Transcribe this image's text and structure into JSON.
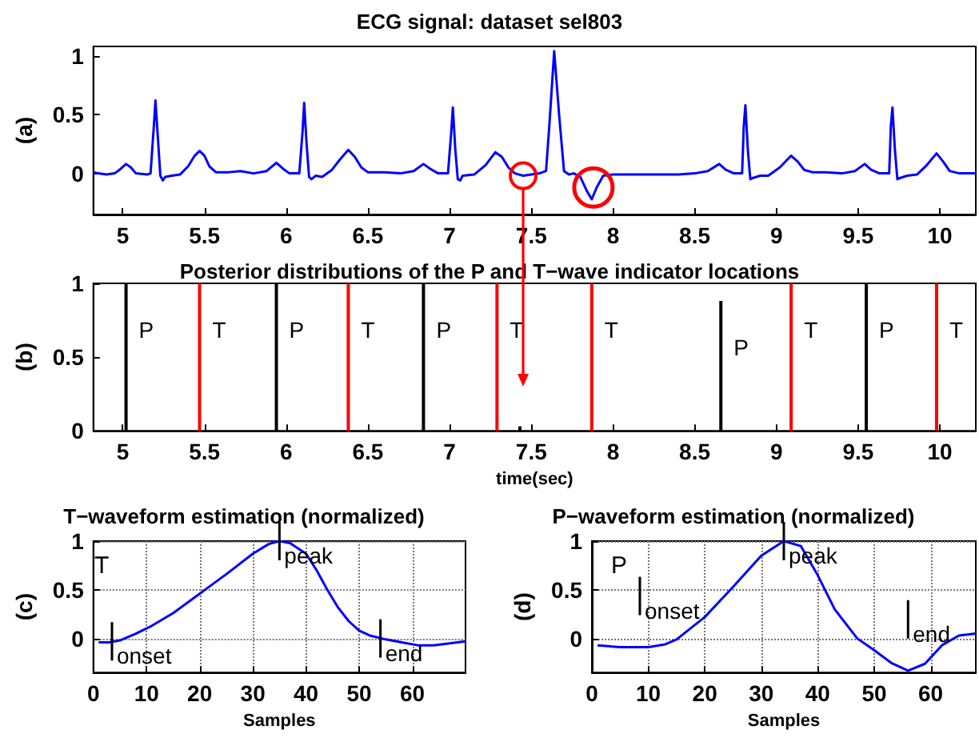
{
  "chart_data": [
    {
      "type": "line",
      "title": "ECG signal: dataset sel803",
      "ylabel": "(a)",
      "color": "#0000ff",
      "marker": "none",
      "line_style": "solid",
      "xlim": [
        4.82,
        10.22
      ],
      "xticks": [
        5,
        5.5,
        6,
        6.5,
        7,
        7.5,
        8,
        8.5,
        9,
        9.5,
        10
      ],
      "ylim": [
        -0.35,
        1.08
      ],
      "yticks": [
        0,
        0.5,
        1
      ],
      "x": [
        4.82,
        4.85,
        4.9,
        4.95,
        4.98,
        5.02,
        5.05,
        5.08,
        5.15,
        5.17,
        5.19,
        5.2,
        5.215,
        5.23,
        5.245,
        5.26,
        5.3,
        5.35,
        5.4,
        5.44,
        5.47,
        5.5,
        5.53,
        5.57,
        5.65,
        5.72,
        5.8,
        5.88,
        5.94,
        5.98,
        6.02,
        6.08,
        6.1,
        6.11,
        6.125,
        6.14,
        6.155,
        6.18,
        6.22,
        6.28,
        6.33,
        6.38,
        6.42,
        6.46,
        6.5,
        6.6,
        6.7,
        6.78,
        6.84,
        6.88,
        6.93,
        6.99,
        7.01,
        7.02,
        7.035,
        7.05,
        7.065,
        7.08,
        7.15,
        7.22,
        7.28,
        7.32,
        7.36,
        7.4,
        7.45,
        7.5,
        7.55,
        7.59,
        7.61,
        7.64,
        7.67,
        7.7,
        7.73,
        7.76,
        7.8,
        7.84,
        7.87,
        7.9,
        7.94,
        8.0,
        8.1,
        8.2,
        8.3,
        8.4,
        8.5,
        8.58,
        8.65,
        8.69,
        8.74,
        8.79,
        8.8,
        8.81,
        8.825,
        8.84,
        8.855,
        8.9,
        8.95,
        9.02,
        9.09,
        9.13,
        9.17,
        9.22,
        9.3,
        9.4,
        9.48,
        9.54,
        9.58,
        9.63,
        9.69,
        9.7,
        9.71,
        9.725,
        9.74,
        9.755,
        9.8,
        9.86,
        9.92,
        9.98,
        10.02,
        10.06,
        10.12,
        10.22
      ],
      "values": [
        0.01,
        0.0,
        -0.01,
        0.0,
        0.03,
        0.08,
        0.05,
        0.0,
        -0.01,
        0.0,
        0.4,
        0.62,
        0.3,
        -0.02,
        -0.06,
        -0.03,
        -0.02,
        -0.01,
        0.06,
        0.15,
        0.19,
        0.15,
        0.06,
        0.01,
        0.01,
        0.02,
        0.0,
        0.02,
        0.09,
        0.04,
        0.0,
        0.0,
        0.35,
        0.6,
        0.25,
        -0.03,
        -0.05,
        -0.02,
        -0.03,
        0.03,
        0.12,
        0.2,
        0.14,
        0.05,
        0.01,
        0.01,
        0.0,
        0.02,
        0.08,
        0.04,
        0.0,
        0.0,
        0.35,
        0.56,
        0.2,
        -0.05,
        -0.06,
        -0.02,
        -0.01,
        0.07,
        0.18,
        0.14,
        0.05,
        0.0,
        -0.02,
        -0.01,
        0.0,
        0.02,
        0.4,
        1.04,
        0.5,
        0.02,
        -0.01,
        0.0,
        -0.03,
        -0.15,
        -0.22,
        -0.12,
        -0.02,
        -0.01,
        -0.01,
        -0.01,
        -0.01,
        -0.01,
        0.0,
        0.02,
        0.08,
        0.03,
        0.0,
        0.0,
        0.4,
        0.58,
        0.2,
        -0.05,
        -0.04,
        -0.02,
        -0.02,
        0.05,
        0.15,
        0.1,
        0.03,
        0.01,
        0.01,
        0.0,
        0.02,
        0.08,
        0.03,
        0.0,
        0.0,
        0.4,
        0.56,
        0.2,
        -0.05,
        -0.04,
        -0.02,
        -0.01,
        0.07,
        0.17,
        0.1,
        0.02,
        0.0,
        0.0
      ]
    },
    {
      "type": "bar",
      "title": "Posterior distributions of the P and T−wave indicator locations",
      "xlabel": "time(sec)",
      "ylabel": "(b)",
      "xlim": [
        4.82,
        10.22
      ],
      "xticks": [
        5,
        5.5,
        6,
        6.5,
        7,
        7.5,
        8,
        8.5,
        9,
        9.5,
        10
      ],
      "ylim": [
        0,
        1
      ],
      "yticks": [
        0,
        0.5,
        1
      ],
      "series": [
        {
          "color": "#000000",
          "x": [
            5.02,
            5.94,
            6.84,
            7.43,
            8.66,
            9.55
          ],
          "values": [
            1,
            1,
            1,
            0.03,
            0.88,
            1
          ],
          "value_labels": [
            "P",
            "P",
            "P",
            null,
            "P",
            "P"
          ]
        },
        {
          "color": "#ff0000",
          "x": [
            5.47,
            6.38,
            7.29,
            7.87,
            9.09,
            9.98
          ],
          "values": [
            1,
            1,
            1,
            1,
            1,
            1
          ],
          "value_labels": [
            "T",
            "T",
            "T",
            "T",
            "T",
            "T"
          ]
        }
      ]
    },
    {
      "type": "line",
      "title": "T−waveform estimation (normalized)",
      "xlabel": "Samples",
      "ylabel": "(c)",
      "color": "#0000ff",
      "marker": "none",
      "line_style": "solid",
      "grid": true,
      "xlim": [
        0,
        70
      ],
      "xticks": [
        0,
        10,
        20,
        30,
        40,
        50,
        60
      ],
      "ylim": [
        -0.35,
        1
      ],
      "yticks": [
        0,
        0.5,
        1
      ],
      "x": [
        1,
        3,
        5,
        8,
        11,
        15,
        20,
        25,
        30,
        33,
        35,
        37,
        40,
        42,
        44,
        46,
        48,
        50,
        52,
        55,
        58,
        61,
        64,
        67,
        70
      ],
      "values": [
        -0.04,
        -0.04,
        -0.02,
        0.05,
        0.13,
        0.26,
        0.46,
        0.66,
        0.87,
        0.97,
        1.0,
        0.98,
        0.87,
        0.7,
        0.5,
        0.32,
        0.18,
        0.08,
        0.03,
        -0.01,
        -0.04,
        -0.07,
        -0.07,
        -0.05,
        -0.03
      ],
      "annotations": [
        "T",
        {
          "text": "onset",
          "x": 3.5,
          "y": -0.03
        },
        {
          "text": "peak",
          "x": 35,
          "y": 1
        },
        {
          "text": "end",
          "x": 54,
          "y": 0
        }
      ]
    },
    {
      "type": "line",
      "title": "P−waveform estimation (normalized)",
      "xlabel": "Samples",
      "ylabel": "(d)",
      "color": "#0000ff",
      "marker": "none",
      "line_style": "solid",
      "grid": true,
      "xlim": [
        0,
        68
      ],
      "xticks": [
        0,
        10,
        20,
        30,
        40,
        50,
        60
      ],
      "ylim": [
        -0.35,
        1
      ],
      "yticks": [
        0,
        0.5,
        1
      ],
      "x": [
        1,
        5,
        10,
        13,
        15,
        20,
        25,
        30,
        34,
        37,
        40,
        43,
        47,
        50,
        53,
        56,
        59,
        62,
        65,
        68
      ],
      "values": [
        -0.07,
        -0.09,
        -0.09,
        -0.06,
        -0.01,
        0.22,
        0.53,
        0.85,
        1.0,
        0.95,
        0.65,
        0.3,
        0.0,
        -0.12,
        -0.25,
        -0.33,
        -0.26,
        -0.07,
        0.03,
        0.05
      ],
      "annotations": [
        "P",
        {
          "text": "onset",
          "x": 8.5,
          "y": -0.09
        },
        {
          "text": "peak",
          "x": 34,
          "y": 1
        },
        {
          "text": "end",
          "x": 56,
          "y": -0.33
        }
      ]
    }
  ]
}
